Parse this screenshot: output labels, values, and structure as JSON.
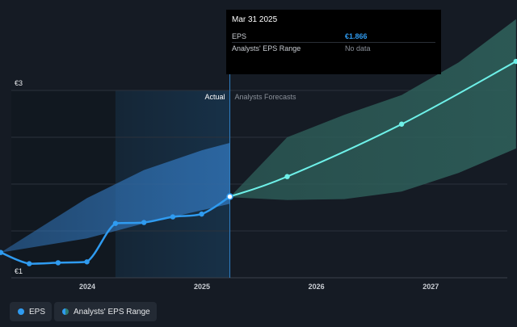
{
  "tooltip": {
    "date": "Mar 31 2025",
    "rows": [
      {
        "label": "EPS",
        "value": "€1.866"
      },
      {
        "label": "Analysts' EPS Range",
        "value": "No data"
      }
    ]
  },
  "legend": {
    "eps_label": "EPS",
    "range_label": "Analysts' EPS Range"
  },
  "colors": {
    "actual_line": "#2f9bf0",
    "forecast_line": "#6ef0e8",
    "actual_range": "#2f6fb0",
    "forecast_range": "#2e5f5a"
  },
  "chart_data": {
    "type": "line",
    "ylim": [
      1,
      3
    ],
    "y_tick_labels": [
      "€3",
      "€1"
    ],
    "x_ticks": [
      {
        "label": "2024",
        "date": "2024-01-01"
      },
      {
        "label": "2025",
        "date": "2025-01-01"
      },
      {
        "label": "2026",
        "date": "2026-01-01"
      },
      {
        "label": "2027",
        "date": "2027-01-01"
      }
    ],
    "section_labels": {
      "actual": "Actual",
      "forecast": "Analysts Forecasts"
    },
    "divider_date": "2025-03-31",
    "series": [
      {
        "name": "EPS",
        "role": "actual",
        "points": [
          {
            "x": "2023-03-31",
            "y": 1.27
          },
          {
            "x": "2023-06-30",
            "y": 1.15
          },
          {
            "x": "2023-09-30",
            "y": 1.16
          },
          {
            "x": "2023-12-31",
            "y": 1.17
          },
          {
            "x": "2024-03-31",
            "y": 1.58
          },
          {
            "x": "2024-06-30",
            "y": 1.59
          },
          {
            "x": "2024-09-30",
            "y": 1.65
          },
          {
            "x": "2024-12-31",
            "y": 1.68
          },
          {
            "x": "2025-03-31",
            "y": 1.866
          }
        ]
      },
      {
        "name": "",
        "role": "forecast",
        "points": [
          {
            "x": "2025-03-31",
            "y": 1.866
          },
          {
            "x": "2025-09-30",
            "y": 2.08
          },
          {
            "x": "2026-09-30",
            "y": 2.64
          },
          {
            "x": "2027-09-30",
            "y": 3.31
          }
        ]
      }
    ],
    "range_actual": [
      {
        "x": "2023-03-31",
        "lo": 1.27,
        "hi": 1.27
      },
      {
        "x": "2023-12-31",
        "lo": 1.42,
        "hi": 1.85
      },
      {
        "x": "2024-06-30",
        "lo": 1.58,
        "hi": 2.15
      },
      {
        "x": "2024-12-31",
        "lo": 1.72,
        "hi": 2.36
      },
      {
        "x": "2025-03-31",
        "lo": 1.79,
        "hi": 2.44
      }
    ],
    "range_forecast": [
      {
        "x": "2025-03-31",
        "lo": 1.86,
        "hi": 1.86
      },
      {
        "x": "2025-09-30",
        "lo": 1.83,
        "hi": 2.5
      },
      {
        "x": "2026-03-31",
        "lo": 1.84,
        "hi": 2.74
      },
      {
        "x": "2026-09-30",
        "lo": 1.92,
        "hi": 2.95
      },
      {
        "x": "2027-03-31",
        "lo": 2.12,
        "hi": 3.3
      },
      {
        "x": "2027-09-30",
        "lo": 2.38,
        "hi": 3.76
      }
    ]
  }
}
